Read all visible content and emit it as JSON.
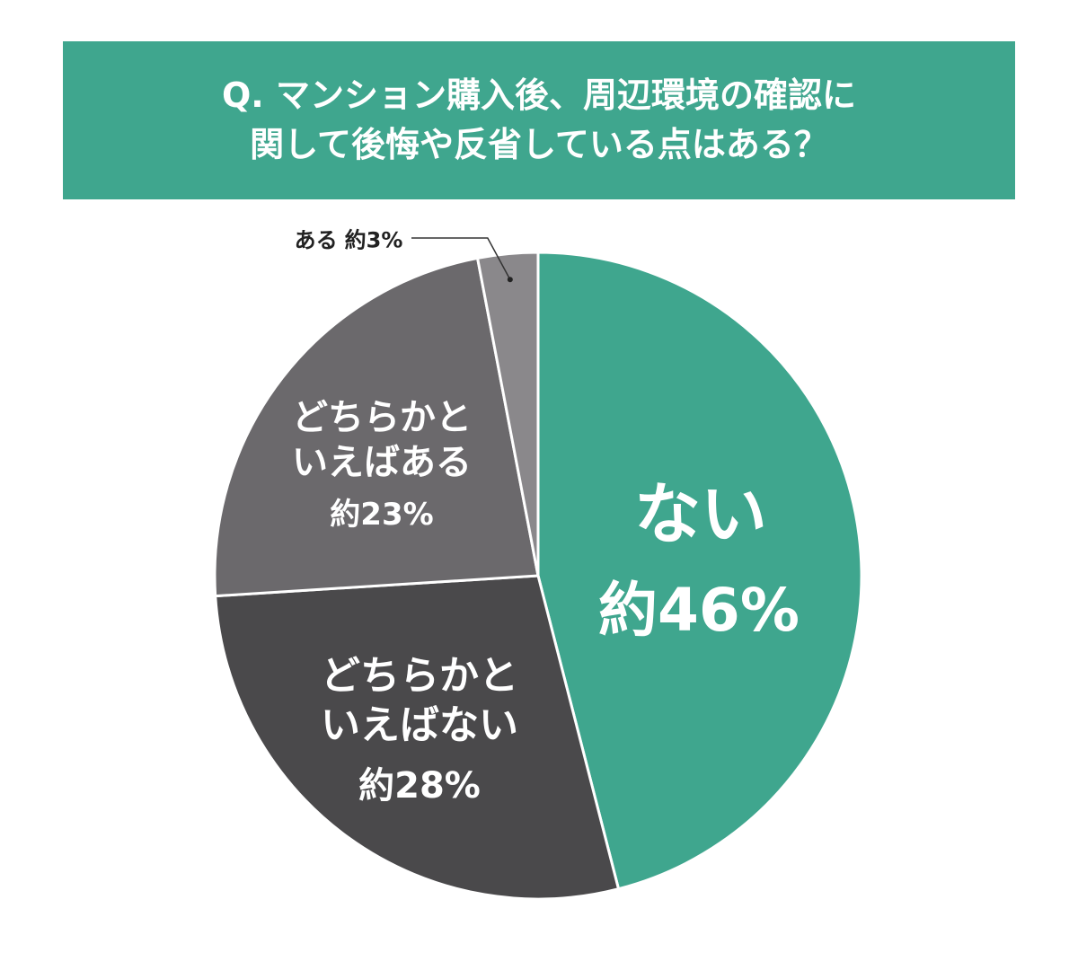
{
  "chart_data": {
    "type": "pie",
    "title": "Q. マンション購入後、周辺環境の確認に\n関して後悔や反省している点はある？",
    "categories": [
      "ない",
      "どちらかといえばない",
      "どちらかといえばある",
      "ある"
    ],
    "values": [
      46,
      28,
      23,
      3
    ],
    "value_labels": [
      "約46%",
      "約28%",
      "約23%",
      "約3%"
    ],
    "colors": [
      "#3fa68e",
      "#4a494b",
      "#6b696c",
      "#8a888b"
    ]
  }
}
